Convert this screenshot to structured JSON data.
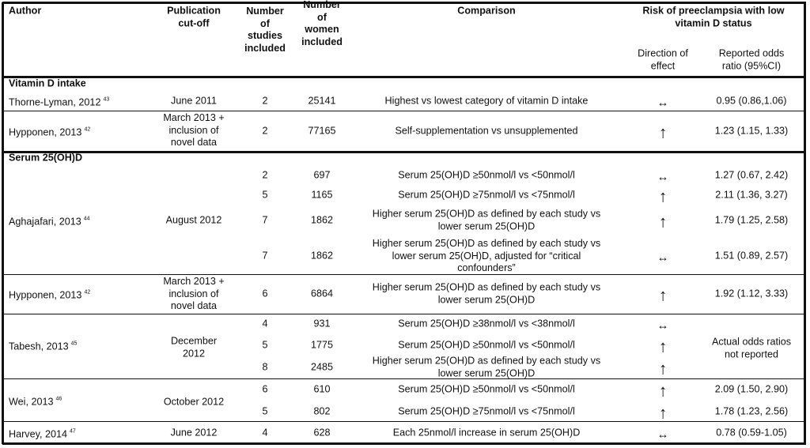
{
  "header": {
    "author": "Author",
    "pub_cutoff": "Publication\ncut-off",
    "n_studies": "Number\nof\nstudies\nincluded",
    "n_women": "Number\nof\nwomen\nincluded",
    "comparison": "Comparison",
    "risk": "Risk of preeclampsia with low\nvitamin D status",
    "direction": "Direction of\neffect",
    "odds_ratio": "Reported odds\nratio (95%CI)"
  },
  "sections": [
    {
      "title": "Vitamin D intake",
      "studies": [
        {
          "author": "Thorne-Lyman, 2012",
          "ref": "43",
          "cutoff": "June 2011",
          "rows": [
            {
              "n_studies": "2",
              "n_women": "25141",
              "comparison": "Highest vs lowest category of vitamin D intake",
              "direction": "↔",
              "odds_ratio": "0.95 (0.86,1.06)"
            }
          ]
        },
        {
          "author": "Hypponen, 2013",
          "ref": "42",
          "cutoff": "March 2013 +\ninclusion of\nnovel data",
          "rows": [
            {
              "n_studies": "2",
              "n_women": "77165",
              "comparison": "Self-supplementation vs unsupplemented",
              "direction": "↑",
              "odds_ratio": "1.23 (1.15, 1.33)"
            }
          ]
        }
      ]
    },
    {
      "title": "Serum 25(OH)D",
      "studies": [
        {
          "author": "Aghajafari, 2013",
          "ref": "44",
          "cutoff": "August 2012",
          "rows": [
            {
              "n_studies": "2",
              "n_women": "697",
              "comparison": "Serum 25(OH)D ≥50nmol/l vs <50nmol/l",
              "direction": "↔",
              "odds_ratio": "1.27 (0.67, 2.42)"
            },
            {
              "n_studies": "5",
              "n_women": "1165",
              "comparison": "Serum 25(OH)D ≥75nmol/l vs <75nmol/l",
              "direction": "↑",
              "odds_ratio": "2.11 (1.36, 3.27)"
            },
            {
              "n_studies": "7",
              "n_women": "1862",
              "comparison": "Higher serum 25(OH)D as defined by each study vs\nlower serum 25(OH)D",
              "direction": "↑",
              "odds_ratio": "1.79 (1.25, 2.58)"
            },
            {
              "n_studies": "7",
              "n_women": "1862",
              "comparison": "Higher serum 25(OH)D as defined by each study vs\nlower serum 25(OH)D, adjusted for “critical\nconfounders”",
              "direction": "↔",
              "odds_ratio": "1.51 (0.89, 2.57)"
            }
          ]
        },
        {
          "author": "Hypponen, 2013",
          "ref": "42",
          "cutoff": "March 2013 +\ninclusion of\nnovel data",
          "rows": [
            {
              "n_studies": "6",
              "n_women": "6864",
              "comparison": "Higher serum 25(OH)D as defined by each study vs\nlower serum 25(OH)D",
              "direction": "↑",
              "odds_ratio": "1.92 (1.12, 3.33)"
            }
          ]
        },
        {
          "author": "Tabesh, 2013",
          "ref": "45",
          "cutoff": "December\n2012",
          "odds_ratio_note": "Actual odds ratios\nnot reported",
          "rows": [
            {
              "n_studies": "4",
              "n_women": "931",
              "comparison": "Serum 25(OH)D ≥38nmol/l vs <38nmol/l",
              "direction": "↔"
            },
            {
              "n_studies": "5",
              "n_women": "1775",
              "comparison": "Serum 25(OH)D ≥50nmol/l vs <50nmol/l",
              "direction": "↑"
            },
            {
              "n_studies": "8",
              "n_women": "2485",
              "comparison": "Higher serum 25(OH)D as defined by each study vs\nlower serum 25(OH)D",
              "direction": "↑"
            }
          ]
        },
        {
          "author": "Wei, 2013",
          "ref": "46",
          "cutoff": "October 2012",
          "rows": [
            {
              "n_studies": "6",
              "n_women": "610",
              "comparison": "Serum 25(OH)D ≥50nmol/l vs <50nmol/l",
              "direction": "↑",
              "odds_ratio": "2.09 (1.50, 2.90)"
            },
            {
              "n_studies": "5",
              "n_women": "802",
              "comparison": "Serum 25(OH)D ≥75nmol/l vs <75nmol/l",
              "direction": "↑",
              "odds_ratio": "1.78 (1.23, 2.56)"
            }
          ]
        },
        {
          "author": "Harvey, 2014",
          "ref": "47",
          "cutoff": "June 2012",
          "rows": [
            {
              "n_studies": "4",
              "n_women": "628",
              "comparison": "Each 25nmol/l increase in serum 25(OH)D",
              "direction": "↔",
              "odds_ratio": "0.78 (0.59-1.05)"
            }
          ]
        }
      ]
    }
  ]
}
